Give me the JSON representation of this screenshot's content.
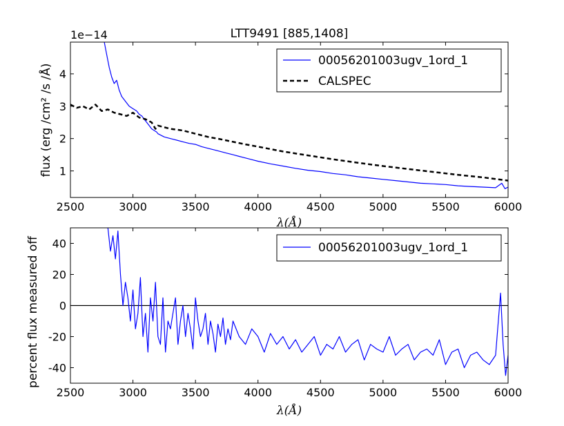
{
  "colors": {
    "measured": "#0000ff",
    "reference": "#000000"
  },
  "chart_data": [
    {
      "type": "line",
      "title": "LTT9491 [885,1408]",
      "xlabel": "λ(Å)",
      "ylabel": "flux (erg /cm² /s /Å)",
      "y_offset_label": "1e−14",
      "xlim": [
        2500,
        6000
      ],
      "ylim": [
        0.18,
        4.98
      ],
      "x_ticks": [
        2500,
        3000,
        3500,
        4000,
        4500,
        5000,
        5500,
        6000
      ],
      "y_ticks": [
        1,
        2,
        3,
        4
      ],
      "legend_position": "top-right",
      "series": [
        {
          "name": "00056201003ugv_1ord_1",
          "style": "solid",
          "x": [
            2770,
            2790,
            2810,
            2830,
            2850,
            2870,
            2890,
            2910,
            2930,
            2950,
            2970,
            2990,
            3010,
            3030,
            3050,
            3070,
            3090,
            3110,
            3130,
            3150,
            3170,
            3190,
            3200,
            3250,
            3300,
            3350,
            3400,
            3450,
            3500,
            3550,
            3600,
            3650,
            3700,
            3750,
            3800,
            3850,
            3900,
            3950,
            4000,
            4100,
            4200,
            4300,
            4400,
            4500,
            4600,
            4700,
            4800,
            4900,
            5000,
            5100,
            5200,
            5300,
            5400,
            5500,
            5600,
            5700,
            5800,
            5900,
            5950,
            5975,
            6000
          ],
          "y": [
            5.0,
            4.6,
            4.2,
            3.9,
            3.7,
            3.8,
            3.5,
            3.3,
            3.2,
            3.1,
            3.0,
            2.95,
            2.9,
            2.85,
            2.75,
            2.7,
            2.6,
            2.5,
            2.4,
            2.3,
            2.25,
            2.2,
            2.15,
            2.05,
            2.0,
            1.95,
            1.9,
            1.85,
            1.82,
            1.75,
            1.7,
            1.65,
            1.6,
            1.55,
            1.5,
            1.45,
            1.4,
            1.35,
            1.3,
            1.22,
            1.15,
            1.08,
            1.02,
            0.98,
            0.92,
            0.88,
            0.82,
            0.78,
            0.74,
            0.7,
            0.66,
            0.62,
            0.6,
            0.58,
            0.54,
            0.52,
            0.5,
            0.48,
            0.62,
            0.45,
            0.5
          ]
        },
        {
          "name": "CALSPEC",
          "style": "dashed",
          "x": [
            2500,
            2550,
            2600,
            2650,
            2700,
            2750,
            2800,
            2850,
            2900,
            2950,
            3000,
            3050,
            3100,
            3150,
            3180,
            3200,
            3250,
            3300,
            3400,
            3500,
            3600,
            3700,
            3800,
            3900,
            4000,
            4200,
            4400,
            4600,
            4800,
            5000,
            5200,
            5400,
            5600,
            5800,
            6000
          ],
          "y": [
            3.05,
            2.95,
            3.0,
            2.9,
            3.05,
            2.85,
            2.9,
            2.8,
            2.75,
            2.7,
            2.8,
            2.65,
            2.6,
            2.5,
            2.3,
            2.4,
            2.35,
            2.3,
            2.25,
            2.15,
            2.05,
            1.98,
            1.9,
            1.82,
            1.75,
            1.6,
            1.48,
            1.36,
            1.25,
            1.15,
            1.06,
            0.97,
            0.88,
            0.8,
            0.7
          ]
        }
      ]
    },
    {
      "type": "line",
      "title": "",
      "xlabel": "λ(Å)",
      "ylabel": "percent flux measured off",
      "xlim": [
        2500,
        6000
      ],
      "ylim": [
        -50,
        50
      ],
      "x_ticks": [
        2500,
        3000,
        3500,
        4000,
        4500,
        5000,
        5500,
        6000
      ],
      "y_ticks": [
        -40,
        -20,
        0,
        20,
        40
      ],
      "reference_line": 0,
      "legend_position": "top-right",
      "series": [
        {
          "name": "00056201003ugv_1ord_1",
          "style": "solid",
          "x": [
            2800,
            2820,
            2840,
            2860,
            2880,
            2900,
            2920,
            2940,
            2960,
            2980,
            3000,
            3020,
            3040,
            3060,
            3080,
            3100,
            3120,
            3140,
            3160,
            3180,
            3200,
            3220,
            3240,
            3260,
            3280,
            3300,
            3320,
            3340,
            3360,
            3380,
            3400,
            3420,
            3440,
            3460,
            3480,
            3500,
            3520,
            3540,
            3560,
            3580,
            3600,
            3620,
            3640,
            3660,
            3680,
            3700,
            3720,
            3740,
            3760,
            3780,
            3800,
            3850,
            3900,
            3950,
            4000,
            4050,
            4100,
            4150,
            4200,
            4250,
            4300,
            4350,
            4400,
            4450,
            4500,
            4550,
            4600,
            4650,
            4700,
            4750,
            4800,
            4850,
            4900,
            4950,
            5000,
            5050,
            5100,
            5150,
            5200,
            5250,
            5300,
            5350,
            5400,
            5450,
            5500,
            5550,
            5600,
            5650,
            5700,
            5750,
            5800,
            5850,
            5900,
            5940,
            5960,
            5980,
            6000
          ],
          "y": [
            50,
            35,
            45,
            30,
            48,
            20,
            0,
            15,
            5,
            -10,
            10,
            -15,
            -5,
            18,
            -20,
            -5,
            -30,
            5,
            -10,
            15,
            -20,
            -25,
            5,
            -30,
            -10,
            -15,
            -5,
            5,
            -25,
            -10,
            0,
            -20,
            -5,
            -15,
            -28,
            5,
            -10,
            -20,
            -15,
            -5,
            -25,
            -10,
            -18,
            -30,
            -12,
            -20,
            -8,
            -25,
            -15,
            -22,
            -10,
            -20,
            -25,
            -15,
            -20,
            -30,
            -18,
            -25,
            -20,
            -28,
            -22,
            -30,
            -25,
            -20,
            -32,
            -25,
            -28,
            -20,
            -30,
            -25,
            -22,
            -35,
            -25,
            -28,
            -30,
            -20,
            -32,
            -28,
            -25,
            -35,
            -30,
            -28,
            -32,
            -22,
            -38,
            -30,
            -28,
            -40,
            -32,
            -30,
            -35,
            -38,
            -32,
            8,
            -25,
            -45,
            -32
          ]
        }
      ]
    }
  ]
}
